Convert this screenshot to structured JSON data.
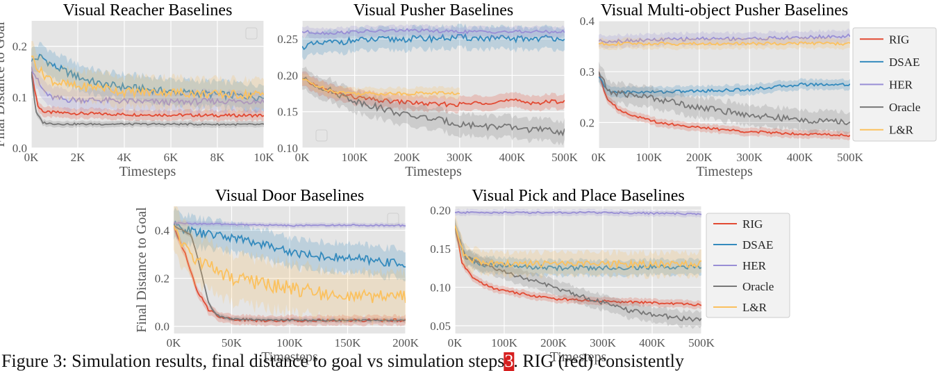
{
  "colors": {
    "RIG": "#E24A33",
    "DSAE": "#348ABD",
    "HER": "#988ED5",
    "Oracle": "#777777",
    "L&R": "#FBC15E",
    "panel_bg": "#E5E5E5"
  },
  "legend": {
    "entries": [
      "RIG",
      "DSAE",
      "HER",
      "Oracle",
      "L&R"
    ]
  },
  "caption": {
    "prefix": "Figure 3: Simulation results, final distance to goal vs simulation steps",
    "ref": "3",
    "suffix": ". RIG (red) consistently"
  },
  "chart_data": [
    {
      "type": "line",
      "title": "Visual Reacher Baselines",
      "xlabel": "Timesteps",
      "ylabel": "Final Distance to Goal",
      "xlim": [
        0,
        10000
      ],
      "ylim": [
        0,
        0.25
      ],
      "xticks": [
        0,
        2000,
        4000,
        6000,
        8000,
        10000
      ],
      "xtick_labels": [
        "0K",
        "2K",
        "4K",
        "6K",
        "8K",
        "10K"
      ],
      "yticks": [
        0,
        0.1,
        0.2
      ],
      "ytick_labels": [
        "0.0",
        "0.1",
        "0.2"
      ],
      "series": [
        {
          "name": "RIG",
          "x": [
            0,
            300,
            600,
            1000,
            2000,
            4000,
            6000,
            8000,
            10000
          ],
          "values": [
            0.15,
            0.08,
            0.07,
            0.07,
            0.068,
            0.066,
            0.065,
            0.064,
            0.064
          ],
          "band": 0.01
        },
        {
          "name": "DSAE",
          "x": [
            0,
            400,
            1000,
            2000,
            3000,
            4000,
            6000,
            8000,
            10000
          ],
          "values": [
            0.17,
            0.18,
            0.16,
            0.14,
            0.125,
            0.12,
            0.11,
            0.105,
            0.1
          ],
          "band": 0.025
        },
        {
          "name": "HER",
          "x": [
            0,
            400,
            800,
            1500,
            2500,
            4000,
            6000,
            8000,
            10000
          ],
          "values": [
            0.16,
            0.12,
            0.1,
            0.095,
            0.095,
            0.092,
            0.09,
            0.092,
            0.092
          ],
          "band": 0.02
        },
        {
          "name": "Oracle",
          "x": [
            0,
            200,
            500,
            800,
            1500,
            3000,
            6000,
            10000
          ],
          "values": [
            0.15,
            0.07,
            0.05,
            0.048,
            0.047,
            0.047,
            0.047,
            0.046
          ],
          "band": 0.006
        },
        {
          "name": "L&R",
          "x": [
            0,
            400,
            1000,
            2000,
            3000,
            4000,
            6000,
            8000,
            10000
          ],
          "values": [
            0.18,
            0.15,
            0.13,
            0.12,
            0.12,
            0.11,
            0.11,
            0.105,
            0.105
          ],
          "band": 0.03
        }
      ]
    },
    {
      "type": "line",
      "title": "Visual Pusher Baselines",
      "xlabel": "Timesteps",
      "xlim": [
        0,
        500000
      ],
      "ylim": [
        0.1,
        0.275
      ],
      "xticks": [
        0,
        100000,
        200000,
        300000,
        400000,
        500000
      ],
      "xtick_labels": [
        "0K",
        "100K",
        "200K",
        "300K",
        "400K",
        "500K"
      ],
      "yticks": [
        0.1,
        0.15,
        0.2,
        0.25
      ],
      "ytick_labels": [
        "0.10",
        "0.15",
        "0.20",
        "0.25"
      ],
      "series": [
        {
          "name": "RIG",
          "x": [
            0,
            20000,
            50000,
            100000,
            150000,
            200000,
            250000,
            300000,
            350000,
            400000,
            450000,
            500000
          ],
          "values": [
            0.195,
            0.188,
            0.178,
            0.17,
            0.165,
            0.163,
            0.16,
            0.16,
            0.163,
            0.165,
            0.162,
            0.165
          ],
          "band": 0.01
        },
        {
          "name": "DSAE",
          "x": [
            0,
            50000,
            100000,
            200000,
            300000,
            400000,
            500000
          ],
          "values": [
            0.24,
            0.245,
            0.248,
            0.25,
            0.252,
            0.25,
            0.252
          ],
          "band": 0.015
        },
        {
          "name": "HER",
          "x": [
            0,
            50000,
            100000,
            200000,
            300000,
            400000,
            500000
          ],
          "values": [
            0.26,
            0.258,
            0.26,
            0.262,
            0.26,
            0.26,
            0.26
          ],
          "band": 0.007
        },
        {
          "name": "Oracle",
          "x": [
            0,
            50000,
            100000,
            150000,
            200000,
            250000,
            300000,
            350000,
            400000,
            450000,
            500000
          ],
          "values": [
            0.195,
            0.18,
            0.165,
            0.155,
            0.145,
            0.14,
            0.133,
            0.13,
            0.128,
            0.125,
            0.122
          ],
          "band": 0.015
        },
        {
          "name": "L&R",
          "x": [
            0,
            30000,
            60000,
            100000,
            150000,
            200000,
            250000,
            300000
          ],
          "values": [
            0.195,
            0.185,
            0.178,
            0.175,
            0.175,
            0.175,
            0.176,
            0.175
          ],
          "band": 0.008
        }
      ]
    },
    {
      "type": "line",
      "title": "Visual Multi-object Pusher Baselines",
      "xlabel": "Timesteps",
      "xlim": [
        0,
        500000
      ],
      "ylim": [
        0.15,
        0.4
      ],
      "xticks": [
        0,
        100000,
        200000,
        300000,
        400000,
        500000
      ],
      "xtick_labels": [
        "0K",
        "100K",
        "200K",
        "300K",
        "400K",
        "500K"
      ],
      "yticks": [
        0.2,
        0.3,
        0.4
      ],
      "ytick_labels": [
        "0.2",
        "0.3",
        "0.4"
      ],
      "legend": "right",
      "series": [
        {
          "name": "RIG",
          "x": [
            0,
            15000,
            40000,
            80000,
            120000,
            200000,
            300000,
            400000,
            500000
          ],
          "values": [
            0.3,
            0.25,
            0.225,
            0.21,
            0.2,
            0.19,
            0.182,
            0.178,
            0.175
          ],
          "band": 0.008
        },
        {
          "name": "DSAE",
          "x": [
            0,
            20000,
            100000,
            200000,
            300000,
            400000,
            500000
          ],
          "values": [
            0.29,
            0.26,
            0.26,
            0.262,
            0.265,
            0.275,
            0.275
          ],
          "band": 0.01
        },
        {
          "name": "HER",
          "x": [
            0,
            100000,
            200000,
            300000,
            400000,
            500000
          ],
          "values": [
            0.36,
            0.362,
            0.365,
            0.365,
            0.367,
            0.37
          ],
          "band": 0.012
        },
        {
          "name": "Oracle",
          "x": [
            0,
            20000,
            100000,
            150000,
            200000,
            300000,
            400000,
            500000
          ],
          "values": [
            0.3,
            0.26,
            0.25,
            0.24,
            0.23,
            0.215,
            0.205,
            0.2
          ],
          "band": 0.02
        },
        {
          "name": "L&R",
          "x": [
            0,
            100000,
            200000,
            300000,
            400000,
            500000
          ],
          "values": [
            0.355,
            0.355,
            0.355,
            0.355,
            0.356,
            0.355
          ],
          "band": 0.01
        }
      ]
    },
    {
      "type": "line",
      "title": "Visual Door Baselines",
      "xlabel": "Timesteps",
      "ylabel": "Final Distance to Goal",
      "xlim": [
        0,
        200000
      ],
      "ylim": [
        -0.03,
        0.5
      ],
      "xticks": [
        0,
        50000,
        100000,
        150000,
        200000
      ],
      "xtick_labels": [
        "0K",
        "50K",
        "100K",
        "150K",
        "200K"
      ],
      "yticks": [
        0,
        0.2,
        0.4
      ],
      "ytick_labels": [
        "0.0",
        "0.2",
        "0.4"
      ],
      "series": [
        {
          "name": "RIG",
          "x": [
            0,
            10000,
            20000,
            30000,
            40000,
            50000,
            70000,
            100000,
            150000,
            200000
          ],
          "values": [
            0.42,
            0.3,
            0.15,
            0.07,
            0.04,
            0.03,
            0.025,
            0.025,
            0.025,
            0.025
          ],
          "band": 0.02
        },
        {
          "name": "DSAE",
          "x": [
            0,
            20000,
            50000,
            80000,
            100000,
            130000,
            160000,
            200000
          ],
          "values": [
            0.42,
            0.39,
            0.37,
            0.34,
            0.31,
            0.29,
            0.28,
            0.26
          ],
          "band": 0.06
        },
        {
          "name": "HER",
          "x": [
            0,
            50000,
            100000,
            150000,
            200000
          ],
          "values": [
            0.43,
            0.425,
            0.42,
            0.422,
            0.42
          ],
          "band": 0.01
        },
        {
          "name": "Oracle",
          "x": [
            0,
            15000,
            20000,
            25000,
            30000,
            35000,
            40000,
            50000,
            100000,
            200000
          ],
          "values": [
            0.42,
            0.38,
            0.3,
            0.2,
            0.1,
            0.06,
            0.04,
            0.03,
            0.025,
            0.025
          ],
          "band": 0.01
        },
        {
          "name": "L&R",
          "x": [
            0,
            10000,
            25000,
            50000,
            75000,
            100000,
            125000,
            150000,
            175000,
            200000
          ],
          "values": [
            0.42,
            0.32,
            0.26,
            0.2,
            0.18,
            0.16,
            0.14,
            0.12,
            0.12,
            0.12
          ],
          "band": 0.1
        }
      ]
    },
    {
      "type": "line",
      "title": "Visual Pick and Place Baselines",
      "xlabel": "Timesteps",
      "xlim": [
        0,
        500000
      ],
      "ylim": [
        0.04,
        0.205
      ],
      "xticks": [
        0,
        100000,
        200000,
        300000,
        400000,
        500000
      ],
      "xtick_labels": [
        "0K",
        "100K",
        "200K",
        "300K",
        "400K",
        "500K"
      ],
      "yticks": [
        0.05,
        0.1,
        0.15,
        0.2
      ],
      "ytick_labels": [
        "0.05",
        "0.10",
        "0.15",
        "0.20"
      ],
      "legend": "right",
      "series": [
        {
          "name": "RIG",
          "x": [
            0,
            15000,
            40000,
            80000,
            150000,
            200000,
            300000,
            400000,
            500000
          ],
          "values": [
            0.18,
            0.13,
            0.11,
            0.098,
            0.09,
            0.085,
            0.082,
            0.08,
            0.077
          ],
          "band": 0.005
        },
        {
          "name": "DSAE",
          "x": [
            0,
            20000,
            50000,
            100000,
            200000,
            300000,
            400000,
            500000
          ],
          "values": [
            0.18,
            0.14,
            0.13,
            0.128,
            0.125,
            0.125,
            0.126,
            0.126
          ],
          "band": 0.01
        },
        {
          "name": "HER",
          "x": [
            0,
            100000,
            200000,
            300000,
            400000,
            500000
          ],
          "values": [
            0.197,
            0.197,
            0.197,
            0.197,
            0.196,
            0.195
          ],
          "band": 0.004
        },
        {
          "name": "Oracle",
          "x": [
            0,
            20000,
            50000,
            100000,
            150000,
            200000,
            250000,
            300000,
            350000,
            400000,
            450000,
            500000
          ],
          "values": [
            0.18,
            0.14,
            0.13,
            0.12,
            0.11,
            0.1,
            0.09,
            0.08,
            0.07,
            0.065,
            0.06,
            0.058
          ],
          "band": 0.01
        },
        {
          "name": "L&R",
          "x": [
            0,
            20000,
            50000,
            100000,
            200000,
            300000,
            400000,
            500000
          ],
          "values": [
            0.18,
            0.14,
            0.132,
            0.13,
            0.13,
            0.13,
            0.13,
            0.13
          ],
          "band": 0.015
        }
      ]
    }
  ]
}
